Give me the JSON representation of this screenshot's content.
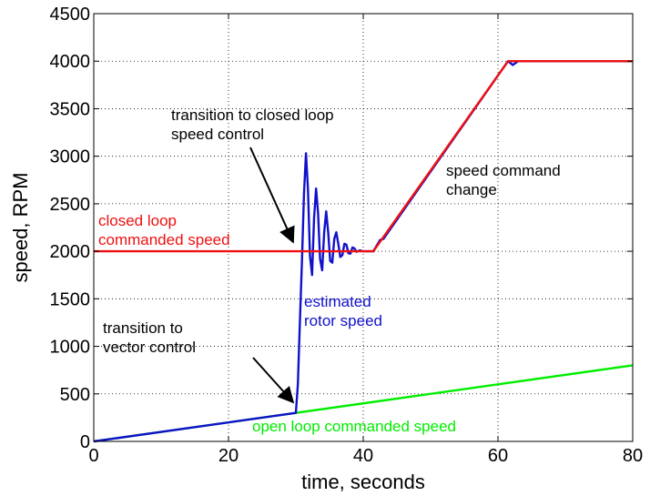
{
  "chart_data": {
    "type": "line",
    "title": "",
    "xlabel": "time, seconds",
    "ylabel": "speed, RPM",
    "xlim": [
      0,
      80
    ],
    "ylim": [
      0,
      4500
    ],
    "xticks": [
      0,
      20,
      40,
      60,
      80
    ],
    "yticks": [
      0,
      500,
      1000,
      1500,
      2000,
      2500,
      3000,
      3500,
      4000,
      4500
    ],
    "grid": true,
    "series": [
      {
        "name": "open loop commanded speed",
        "color": "#00ee00",
        "x": [
          0,
          80
        ],
        "y": [
          0,
          800
        ]
      },
      {
        "name": "closed loop commanded speed",
        "color": "#ee1111",
        "x": [
          0,
          41.5,
          61.5,
          80
        ],
        "y": [
          2000,
          2000,
          4000,
          4000
        ]
      },
      {
        "name": "estimated rotor speed",
        "color": "#1111cc",
        "x": [
          0,
          30,
          30.3,
          30.6,
          30.9,
          31.2,
          31.5,
          31.8,
          32.1,
          32.4,
          32.7,
          33.0,
          33.3,
          33.6,
          33.9,
          34.2,
          34.5,
          34.8,
          35.1,
          35.4,
          35.7,
          36.0,
          36.3,
          36.6,
          36.9,
          37.2,
          37.5,
          37.8,
          38.1,
          38.4,
          38.7,
          39.0,
          39.5,
          40.0,
          41.5,
          42.5,
          43.0,
          60.5,
          61.5,
          62.2,
          63.0,
          80
        ],
        "y": [
          0,
          300,
          600,
          1250,
          1900,
          2600,
          3030,
          2650,
          1950,
          1750,
          2350,
          2660,
          2400,
          1920,
          1800,
          2200,
          2420,
          2200,
          1900,
          1880,
          2130,
          2200,
          2080,
          1940,
          1960,
          2080,
          2070,
          1980,
          1975,
          2040,
          2030,
          1995,
          2010,
          2000,
          2000,
          2120,
          2130,
          3900,
          4000,
          3960,
          4000,
          4000
        ]
      }
    ],
    "annotations": [
      {
        "id": "closed_loop_transition",
        "lines": [
          "transition to closed loop",
          "speed control"
        ],
        "color": "#000000"
      },
      {
        "id": "speed_command_change",
        "lines": [
          "speed command",
          "change"
        ],
        "color": "#000000"
      },
      {
        "id": "closed_loop_cmd",
        "lines": [
          "closed loop",
          "commanded speed"
        ],
        "color": "#ee1111"
      },
      {
        "id": "estimated_rotor",
        "lines": [
          "estimated",
          "rotor speed"
        ],
        "color": "#1111cc"
      },
      {
        "id": "vector_transition",
        "lines": [
          "transition to",
          "vector control"
        ],
        "color": "#000000"
      },
      {
        "id": "open_loop_cmd",
        "lines": [
          "open loop commanded speed"
        ],
        "color": "#00ee00"
      }
    ]
  }
}
